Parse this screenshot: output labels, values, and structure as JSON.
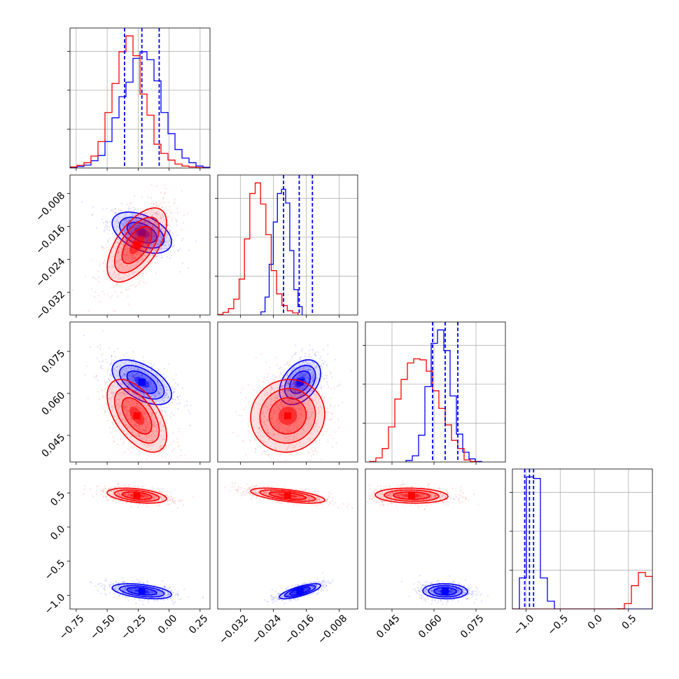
{
  "chart_data": {
    "type": "corner",
    "colors": {
      "blue": "#0000ff",
      "red": "#ff0000",
      "grid": "#b0b0b0"
    },
    "parameters": [
      {
        "range": [
          -0.8,
          0.33
        ],
        "ticks": [
          -0.75,
          -0.5,
          -0.25,
          0.0,
          0.25
        ],
        "tick_labels": [
          "−0.75",
          "−0.50",
          "−0.25",
          "0.00",
          "0.25"
        ]
      },
      {
        "range": [
          -0.0375,
          -0.0035
        ],
        "ticks": [
          -0.032,
          -0.024,
          -0.016,
          -0.008
        ],
        "tick_labels": [
          "−0.032",
          "−0.024",
          "−0.016",
          "−0.008"
        ]
      },
      {
        "range": [
          0.0355,
          0.0855
        ],
        "ticks": [
          0.045,
          0.06,
          0.075
        ],
        "tick_labels": [
          "0.045",
          "0.060",
          "0.075"
        ]
      },
      {
        "range": [
          -1.2,
          0.85
        ],
        "ticks": [
          -1.0,
          -0.5,
          0.0,
          0.5
        ],
        "tick_labels": [
          "−1.0",
          "−0.5",
          "0.0",
          "0.5"
        ]
      }
    ],
    "series": [
      {
        "color": "blue",
        "quantiles": [
          [
            -0.36,
            -0.22,
            -0.08
          ],
          [
            -0.0215,
            -0.0177,
            -0.0145
          ],
          [
            0.0595,
            0.064,
            0.0685
          ],
          [
            -1.02,
            -0.95,
            -0.89
          ]
        ],
        "means": [
          -0.22,
          -0.0175,
          0.064,
          -0.94
        ],
        "sds": [
          0.12,
          0.0025,
          0.004,
          0.055
        ],
        "hist": [
          {
            "start": -0.8,
            "width": 0.0565,
            "counts": [
              5,
              12,
              22,
              55,
              95,
              200,
              380,
              540,
              650,
              830,
              880,
              820,
              660,
              420,
              260,
              140,
              75,
              40,
              15,
              5
            ]
          },
          {
            "start": -0.027,
            "width": 0.001,
            "counts": [
              30,
              170,
              480,
              880,
              1150,
              1190,
              1060,
              610,
              240,
              80
            ]
          },
          {
            "start": 0.05,
            "width": 0.00225,
            "counts": [
              15,
              60,
              260,
              730,
              1150,
              1280,
              1080,
              640,
              270,
              95,
              30,
              5
            ]
          },
          {
            "start": -1.2,
            "width": 0.1025,
            "counts": [
              0,
              400,
              1700,
              1680,
              400,
              100,
              0,
              0,
              0,
              0,
              0,
              0,
              0,
              0,
              0,
              0,
              0,
              0,
              0,
              0
            ]
          }
        ],
        "pairs": [
          {
            "x": 0,
            "y": 1,
            "rho": -0.45
          },
          {
            "x": 0,
            "y": 2,
            "rho": -0.55
          },
          {
            "x": 1,
            "y": 2,
            "rho": 0.4
          },
          {
            "x": 0,
            "y": 3,
            "rho": -0.45
          },
          {
            "x": 1,
            "y": 3,
            "rho": 0.75
          },
          {
            "x": 2,
            "y": 3,
            "rho": -0.05
          }
        ]
      },
      {
        "color": "red",
        "means": [
          -0.26,
          -0.0205,
          0.052,
          0.46
        ],
        "sds": [
          0.12,
          0.0045,
          0.0065,
          0.055
        ],
        "hist": [
          {
            "start": -0.8,
            "width": 0.0565,
            "counts": [
              8,
              20,
              40,
              90,
              200,
              420,
              640,
              880,
              1000,
              850,
              560,
              400,
              180,
              110,
              60,
              30,
              15,
              8,
              3,
              0
            ]
          },
          {
            "start": -0.0375,
            "width": 0.0013,
            "counts": [
              5,
              25,
              60,
              150,
              340,
              720,
              1150,
              1250,
              1050,
              760,
              420,
              200,
              90,
              40,
              20
            ]
          },
          {
            "start": 0.037,
            "width": 0.00225,
            "counts": [
              5,
              40,
              130,
              340,
              610,
              800,
              960,
              1000,
              990,
              880,
              690,
              520,
              360,
              210,
              130,
              20,
              5
            ]
          },
          {
            "start": -1.2,
            "width": 0.1025,
            "counts": [
              0,
              0,
              0,
              0,
              0,
              0,
              0,
              0,
              0,
              0,
              0,
              0,
              0,
              0,
              0,
              3,
              70,
              300,
              470,
              420
            ]
          }
        ],
        "pairs": [
          {
            "x": 0,
            "y": 1,
            "rho": 0.6
          },
          {
            "x": 0,
            "y": 2,
            "rho": -0.55
          },
          {
            "x": 1,
            "y": 2,
            "rho": 0.05
          },
          {
            "x": 0,
            "y": 3,
            "rho": -0.4
          },
          {
            "x": 1,
            "y": 3,
            "rho": -0.6
          },
          {
            "x": 2,
            "y": 3,
            "rho": -0.1
          }
        ]
      }
    ],
    "grid": true
  }
}
